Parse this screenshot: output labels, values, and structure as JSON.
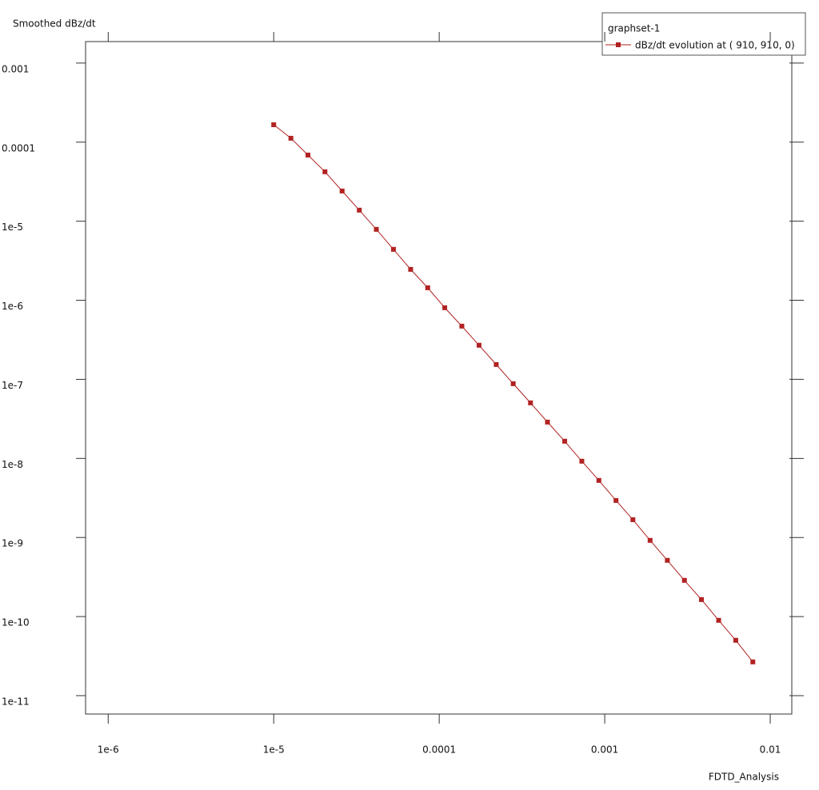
{
  "chart_data": {
    "type": "line",
    "title": null,
    "y_label": "Smoothed dBz/dt",
    "x_label": "FDTD_Analysis",
    "legend_title": "graphset-1",
    "legend": "top-right",
    "xscale": "log",
    "yscale": "log",
    "grid": false,
    "x": [
      1e-05,
      1.27e-05,
      1.61e-05,
      2.04e-05,
      2.59e-05,
      3.29e-05,
      4.17e-05,
      5.29e-05,
      6.72e-05,
      8.52e-05,
      0.000108,
      0.000137,
      0.000174,
      0.000221,
      0.00028,
      0.000356,
      0.000451,
      0.000573,
      0.000727,
      0.000922,
      0.00117,
      0.00148,
      0.00188,
      0.00239,
      0.00303,
      0.00384,
      0.00488,
      0.00619,
      0.00785
    ],
    "series": [
      {
        "name": "dBz/dt evolution at ( 910, 910, 0)",
        "color": "#b22222",
        "values": [
          0.000166,
          0.000112,
          6.87e-05,
          4.22e-05,
          2.41e-05,
          1.38e-05,
          7.89e-06,
          4.41e-06,
          2.46e-06,
          1.44e-06,
          8.05e-07,
          4.71e-07,
          2.7e-07,
          1.54e-07,
          8.81e-08,
          5.04e-08,
          2.88e-08,
          1.65e-08,
          9.22e-09,
          5.27e-09,
          2.94e-09,
          1.68e-09,
          9.2e-10,
          5.14e-10,
          2.87e-10,
          1.64e-10,
          8.96e-11,
          5.01e-11,
          2.67e-11
        ]
      }
    ],
    "xlim": [
      7.3e-07,
      0.0135
    ],
    "ylim": [
      5.85e-12,
      0.00187
    ],
    "xticks": [
      {
        "value": 1e-06,
        "label": "1e-6"
      },
      {
        "value": 1e-05,
        "label": "1e-5"
      },
      0.0001,
      0.001,
      0.01
    ],
    "yticks": [
      0.001,
      0.0001,
      {
        "value": 1e-05,
        "label": "1e-5"
      },
      {
        "value": 1e-06,
        "label": "1e-6"
      },
      {
        "value": 1e-07,
        "label": "1e-7"
      },
      {
        "value": 1e-08,
        "label": "1e-8"
      },
      {
        "value": 1e-09,
        "label": "1e-9"
      },
      {
        "value": 1e-10,
        "label": "1e-10"
      },
      {
        "value": 1e-11,
        "label": "1e-11"
      }
    ]
  }
}
